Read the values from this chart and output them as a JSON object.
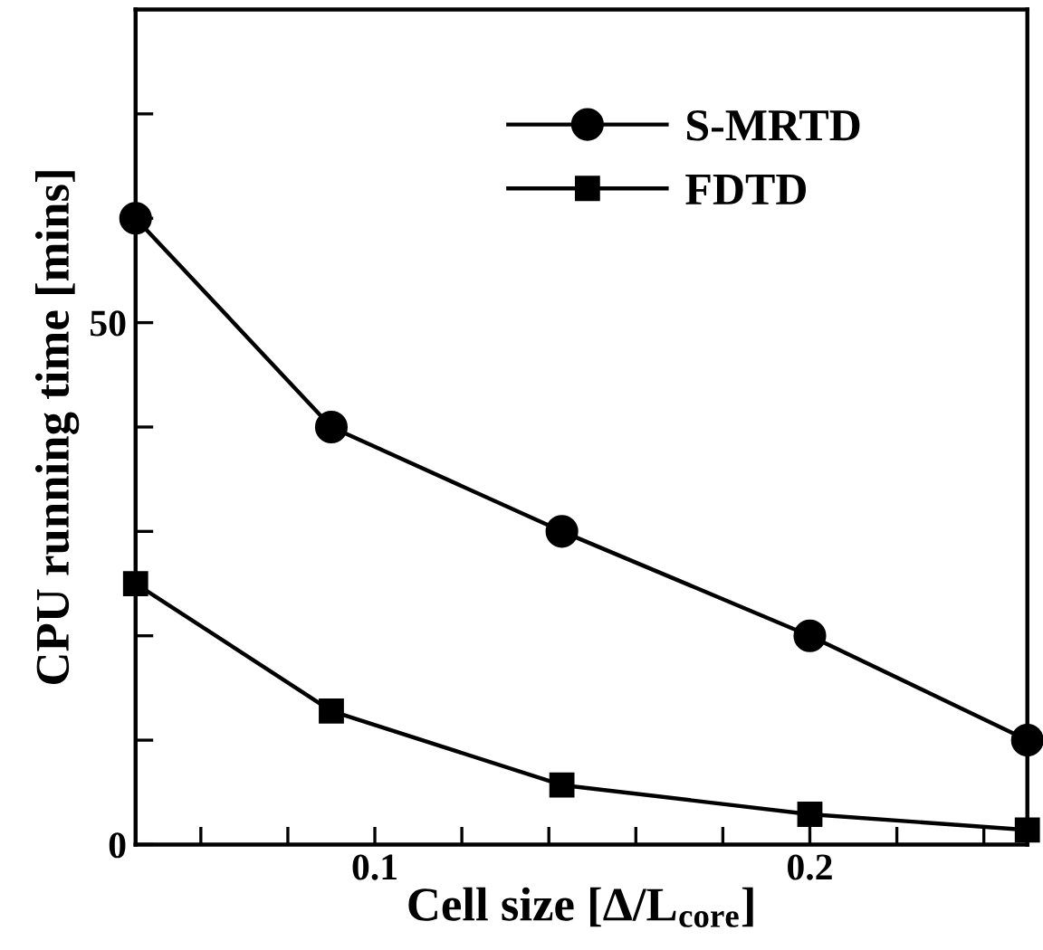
{
  "chart_data": {
    "type": "line",
    "xlabel": "Cell size [Δ/L$_{core}$]",
    "ylabel": "CPU running time [mins]",
    "x": [
      0.045,
      0.09,
      0.143,
      0.2,
      0.25
    ],
    "series": [
      {
        "name": "S-MRTD",
        "color": "#000000",
        "marker": "circle",
        "values": [
          60,
          40,
          30,
          20,
          10
        ]
      },
      {
        "name": "FDTD",
        "color": "#000000",
        "marker": "square",
        "values": [
          25,
          12.8,
          5.7,
          2.9,
          1.4
        ]
      }
    ],
    "xlim": [
      0.045,
      0.25
    ],
    "xticks": [
      {
        "value": 0.06,
        "label": null
      },
      {
        "value": 0.08,
        "label": null
      },
      0.1,
      {
        "value": 0.12,
        "label": null
      },
      {
        "value": 0.14,
        "label": null
      },
      {
        "value": 0.16,
        "label": null
      },
      {
        "value": 0.18,
        "label": null
      },
      0.2,
      {
        "value": 0.22,
        "label": null
      },
      {
        "value": 0.24,
        "label": null
      }
    ],
    "ylim": [
      0,
      80
    ],
    "yticks": [
      0,
      {
        "value": 10,
        "label": null
      },
      {
        "value": 20,
        "label": null
      },
      {
        "value": 30,
        "label": null
      },
      {
        "value": 40,
        "label": null
      },
      50,
      {
        "value": 60,
        "label": null
      },
      {
        "value": 70,
        "label": null
      }
    ],
    "grid": false,
    "legend": "top right",
    "line_style": "solid"
  }
}
